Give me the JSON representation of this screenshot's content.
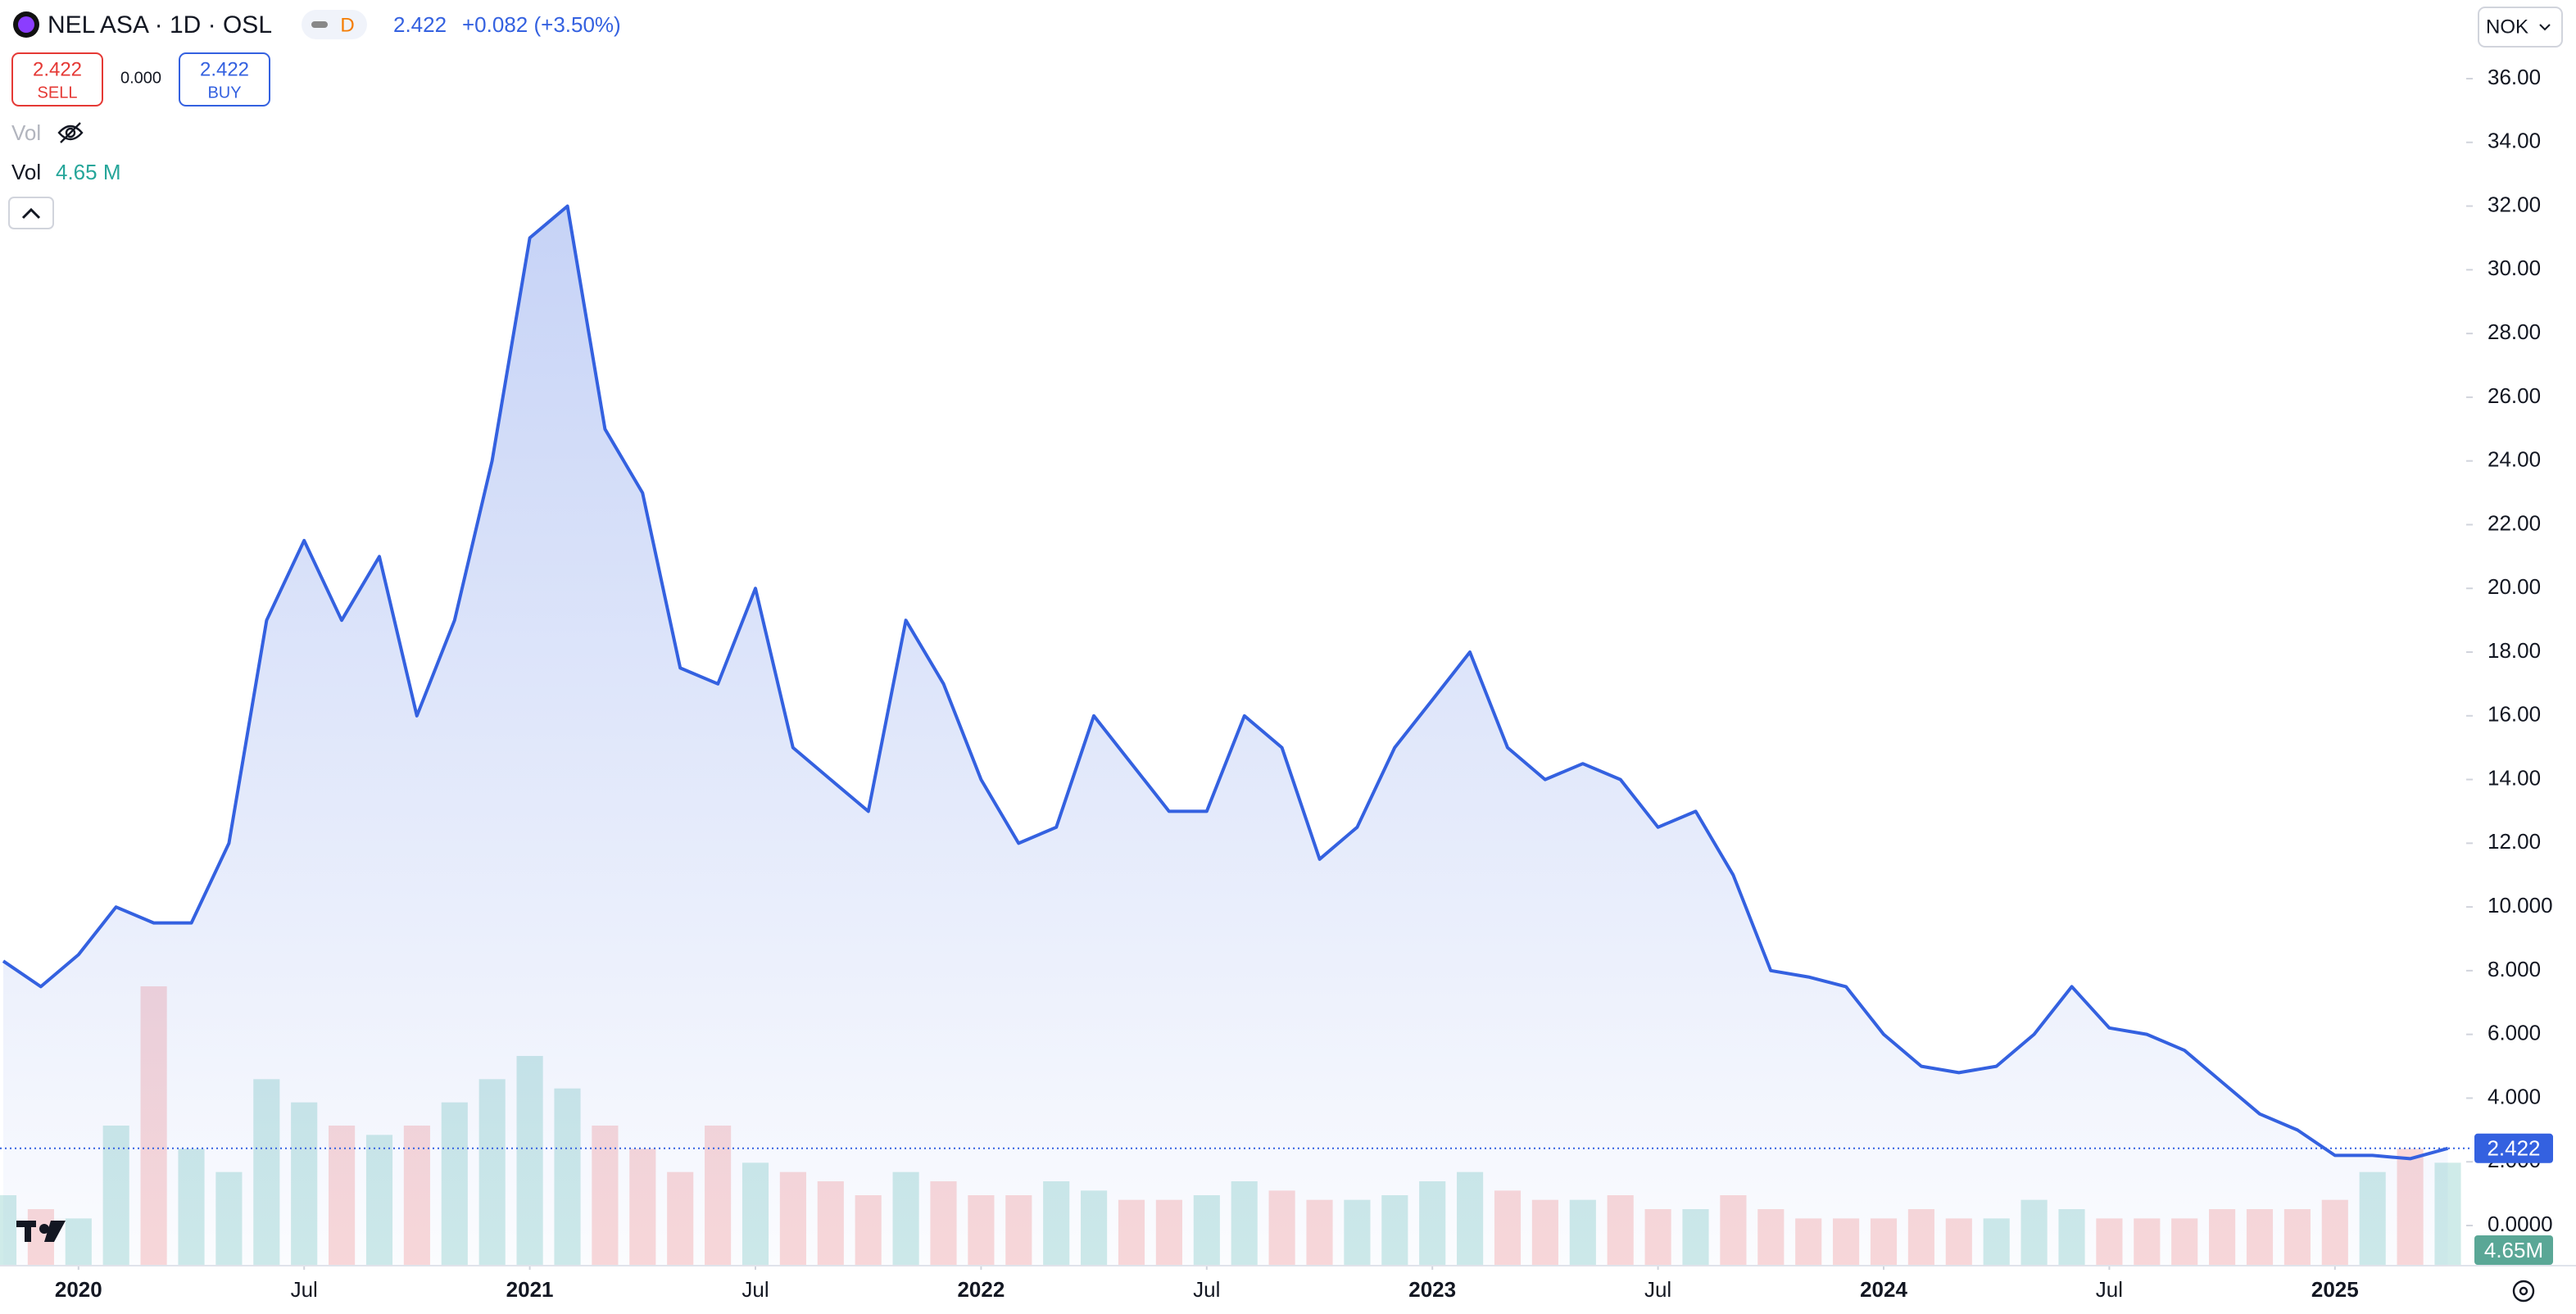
{
  "header": {
    "symbol": "NEL ASA · 1D · OSL",
    "badge": "D",
    "last": "2.422",
    "change": "+0.082 (+3.50%)",
    "sell_price": "2.422",
    "sell": "SELL",
    "spread": "0.000",
    "buy_price": "2.422",
    "buy": "BUY",
    "vol_hidden": "Vol",
    "vol": "Vol",
    "vol_value": "4.65 M",
    "currency": "NOK"
  },
  "chart_data": {
    "type": "area",
    "x": [
      "2019-11",
      "2019-12",
      "2020-01",
      "2020-02",
      "2020-03",
      "2020-04",
      "2020-05",
      "2020-06",
      "2020-07",
      "2020-08",
      "2020-09",
      "2020-10",
      "2020-11",
      "2020-12",
      "2021-01",
      "2021-02",
      "2021-03",
      "2021-04",
      "2021-05",
      "2021-06",
      "2021-07",
      "2021-08",
      "2021-09",
      "2021-10",
      "2021-11",
      "2021-12",
      "2022-01",
      "2022-02",
      "2022-03",
      "2022-04",
      "2022-05",
      "2022-06",
      "2022-07",
      "2022-08",
      "2022-09",
      "2022-10",
      "2022-11",
      "2022-12",
      "2023-01",
      "2023-02",
      "2023-03",
      "2023-04",
      "2023-05",
      "2023-06",
      "2023-07",
      "2023-08",
      "2023-09",
      "2023-10",
      "2023-11",
      "2023-12",
      "2024-01",
      "2024-02",
      "2024-03",
      "2024-04",
      "2024-05",
      "2024-06",
      "2024-07",
      "2024-08",
      "2024-09",
      "2024-10",
      "2024-11",
      "2024-12",
      "2025-01",
      "2025-02",
      "2025-03",
      "2025-04"
    ],
    "series": [
      {
        "name": "NEL ASA",
        "color": "#3461e0",
        "values": [
          8.3,
          7.5,
          8.5,
          10.0,
          9.5,
          9.5,
          12.0,
          19.0,
          21.5,
          19.0,
          21.0,
          16.0,
          19.0,
          24.0,
          31.0,
          32.0,
          25.0,
          23.0,
          17.5,
          17.0,
          20.0,
          15.0,
          14.0,
          13.0,
          19.0,
          17.0,
          14.0,
          12.0,
          12.5,
          16.0,
          14.5,
          13.0,
          13.0,
          16.0,
          15.0,
          11.5,
          12.5,
          15.0,
          16.5,
          18.0,
          15.0,
          14.0,
          14.5,
          14.0,
          12.5,
          13.0,
          11.0,
          8.0,
          7.8,
          7.5,
          6.0,
          5.0,
          4.8,
          5.0,
          6.0,
          7.5,
          6.2,
          6.0,
          5.5,
          4.5,
          3.5,
          3.0,
          2.2,
          2.2,
          2.1,
          2.422
        ]
      },
      {
        "name": "Vol",
        "axis": "volume",
        "values": [
          15,
          12,
          10,
          30,
          60,
          25,
          20,
          40,
          35,
          30,
          28,
          30,
          35,
          40,
          45,
          38,
          30,
          25,
          20,
          30,
          22,
          20,
          18,
          15,
          20,
          18,
          15,
          15,
          18,
          16,
          14,
          14,
          15,
          18,
          16,
          14,
          14,
          15,
          18,
          20,
          16,
          14,
          14,
          15,
          12,
          12,
          15,
          12,
          10,
          10,
          10,
          12,
          10,
          10,
          14,
          12,
          10,
          10,
          10,
          12,
          12,
          12,
          14,
          20,
          25,
          22
        ]
      }
    ],
    "ylim": [
      0,
      36.5
    ],
    "yticks": [
      {
        "value": 0,
        "label": "0.0000"
      },
      {
        "value": 2,
        "label": "2.000"
      },
      {
        "value": 4,
        "label": "4.000"
      },
      {
        "value": 6,
        "label": "6.000"
      },
      {
        "value": 8,
        "label": "8.000"
      },
      {
        "value": 10,
        "label": "10.000"
      },
      {
        "value": 12,
        "label": "12.00"
      },
      {
        "value": 14,
        "label": "14.00"
      },
      {
        "value": 16,
        "label": "16.00"
      },
      {
        "value": 18,
        "label": "18.00"
      },
      {
        "value": 20,
        "label": "20.00"
      },
      {
        "value": 22,
        "label": "22.00"
      },
      {
        "value": 24,
        "label": "24.00"
      },
      {
        "value": 26,
        "label": "26.00"
      },
      {
        "value": 28,
        "label": "28.00"
      },
      {
        "value": 30,
        "label": "30.00"
      },
      {
        "value": 32,
        "label": "32.00"
      },
      {
        "value": 34,
        "label": "34.00"
      },
      {
        "value": 36,
        "label": "36.00"
      }
    ],
    "xticks": [
      {
        "value": "2020-01",
        "label": "2020"
      },
      {
        "value": "2020-07",
        "label": "Jul"
      },
      {
        "value": "2021-01",
        "label": "2021"
      },
      {
        "value": "2021-07",
        "label": "Jul"
      },
      {
        "value": "2022-01",
        "label": "2022"
      },
      {
        "value": "2022-07",
        "label": "Jul"
      },
      {
        "value": "2023-01",
        "label": "2023"
      },
      {
        "value": "2023-07",
        "label": "Jul"
      },
      {
        "value": "2024-01",
        "label": "2024"
      },
      {
        "value": "2024-07",
        "label": "Jul"
      },
      {
        "value": "2025-01",
        "label": "2025"
      }
    ],
    "last_price": {
      "value": 2.422,
      "label": "2.422"
    },
    "volume_tag": "4.65M"
  }
}
